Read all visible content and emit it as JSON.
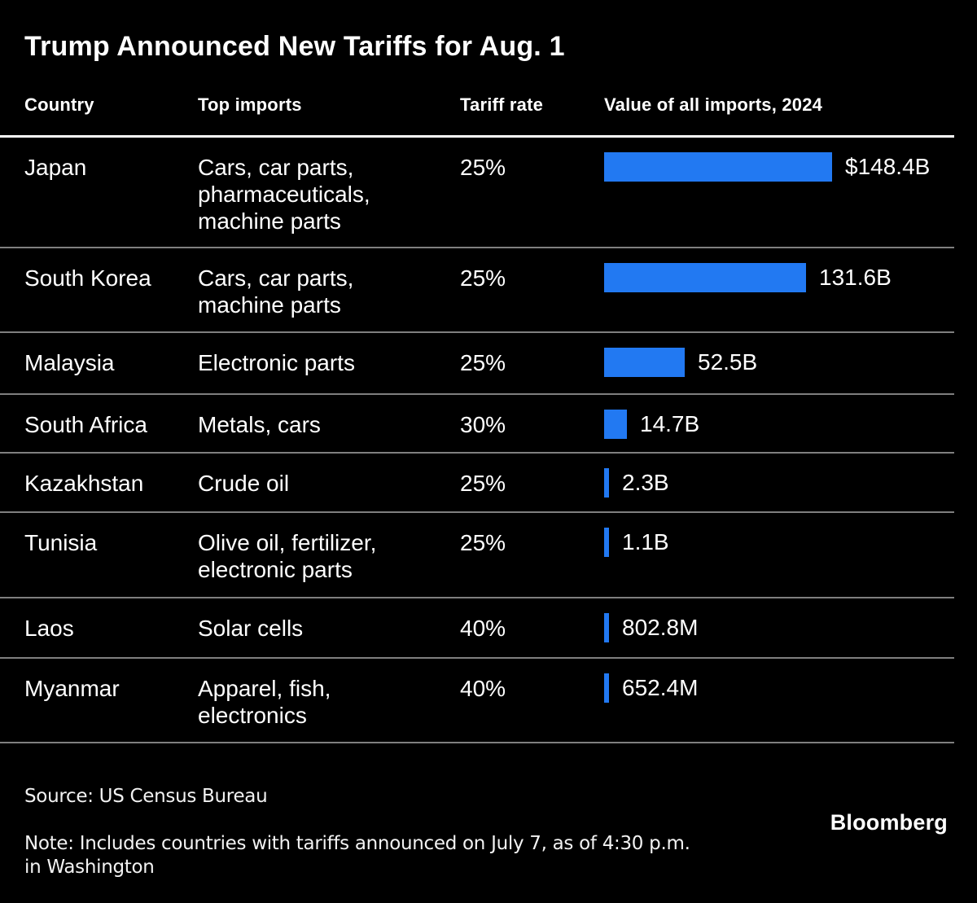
{
  "title": "Trump Announced New Tariffs for Aug. 1",
  "columns": {
    "country": "Country",
    "imports": "Top imports",
    "rate": "Tariff rate",
    "value": "Value of all imports, 2024"
  },
  "rows": [
    {
      "country": "Japan",
      "imports": [
        "Cars, car parts,",
        "pharmaceuticals,",
        "machine parts"
      ],
      "rate": "25%",
      "value_label": "$148.4B",
      "value_billions": 148.4
    },
    {
      "country": "South Korea",
      "imports": [
        "Cars, car parts,",
        "machine parts"
      ],
      "rate": "25%",
      "value_label": "131.6B",
      "value_billions": 131.6
    },
    {
      "country": "Malaysia",
      "imports": [
        "Electronic parts"
      ],
      "rate": "25%",
      "value_label": "52.5B",
      "value_billions": 52.5
    },
    {
      "country": "South Africa",
      "imports": [
        "Metals, cars"
      ],
      "rate": "30%",
      "value_label": "14.7B",
      "value_billions": 14.7
    },
    {
      "country": "Kazakhstan",
      "imports": [
        "Crude oil"
      ],
      "rate": "25%",
      "value_label": "2.3B",
      "value_billions": 2.3
    },
    {
      "country": "Tunisia",
      "imports": [
        "Olive oil, fertilizer,",
        "electronic parts"
      ],
      "rate": "25%",
      "value_label": "1.1B",
      "value_billions": 1.1
    },
    {
      "country": "Laos",
      "imports": [
        "Solar cells"
      ],
      "rate": "40%",
      "value_label": "802.8M",
      "value_billions": 0.8028
    },
    {
      "country": "Myanmar",
      "imports": [
        "Apparel, fish,",
        "electronics"
      ],
      "rate": "40%",
      "value_label": "652.4M",
      "value_billions": 0.6524
    }
  ],
  "footer": {
    "source": "Source: US Census Bureau",
    "note": [
      "Note: Includes countries with tariffs announced on July 7, as of 4:30 p.m.",
      "in Washington"
    ],
    "brand": "Bloomberg"
  },
  "colors": {
    "background": "#000000",
    "text": "#ffffff",
    "bar_blue": "#2279f2",
    "separator": "#7f7f7f",
    "header_rule": "#ffffff"
  },
  "chart_data": {
    "type": "bar",
    "orientation": "horizontal",
    "title": "Trump Announced New Tariffs for Aug. 1",
    "categories": [
      "Japan",
      "South Korea",
      "Malaysia",
      "South Africa",
      "Kazakhstan",
      "Tunisia",
      "Laos",
      "Myanmar"
    ],
    "values_billions_usd": [
      148.4,
      131.6,
      52.5,
      14.7,
      2.3,
      1.1,
      0.8028,
      0.6524
    ],
    "value_labels": [
      "$148.4B",
      "131.6B",
      "52.5B",
      "14.7B",
      "2.3B",
      "1.1B",
      "802.8M",
      "652.4M"
    ],
    "tariff_rates": [
      "25%",
      "25%",
      "25%",
      "30%",
      "25%",
      "25%",
      "40%",
      "40%"
    ],
    "top_imports": [
      "Cars, car parts, pharmaceuticals, machine parts",
      "Cars, car parts, machine parts",
      "Electronic parts",
      "Metals, cars",
      "Crude oil",
      "Olive oil, fertilizer, electronic parts",
      "Solar cells",
      "Apparel, fish, electronics"
    ],
    "xlabel": "Value of all imports, 2024",
    "xlim_billions": [
      0,
      148.4
    ],
    "grid": false,
    "legend": false
  }
}
